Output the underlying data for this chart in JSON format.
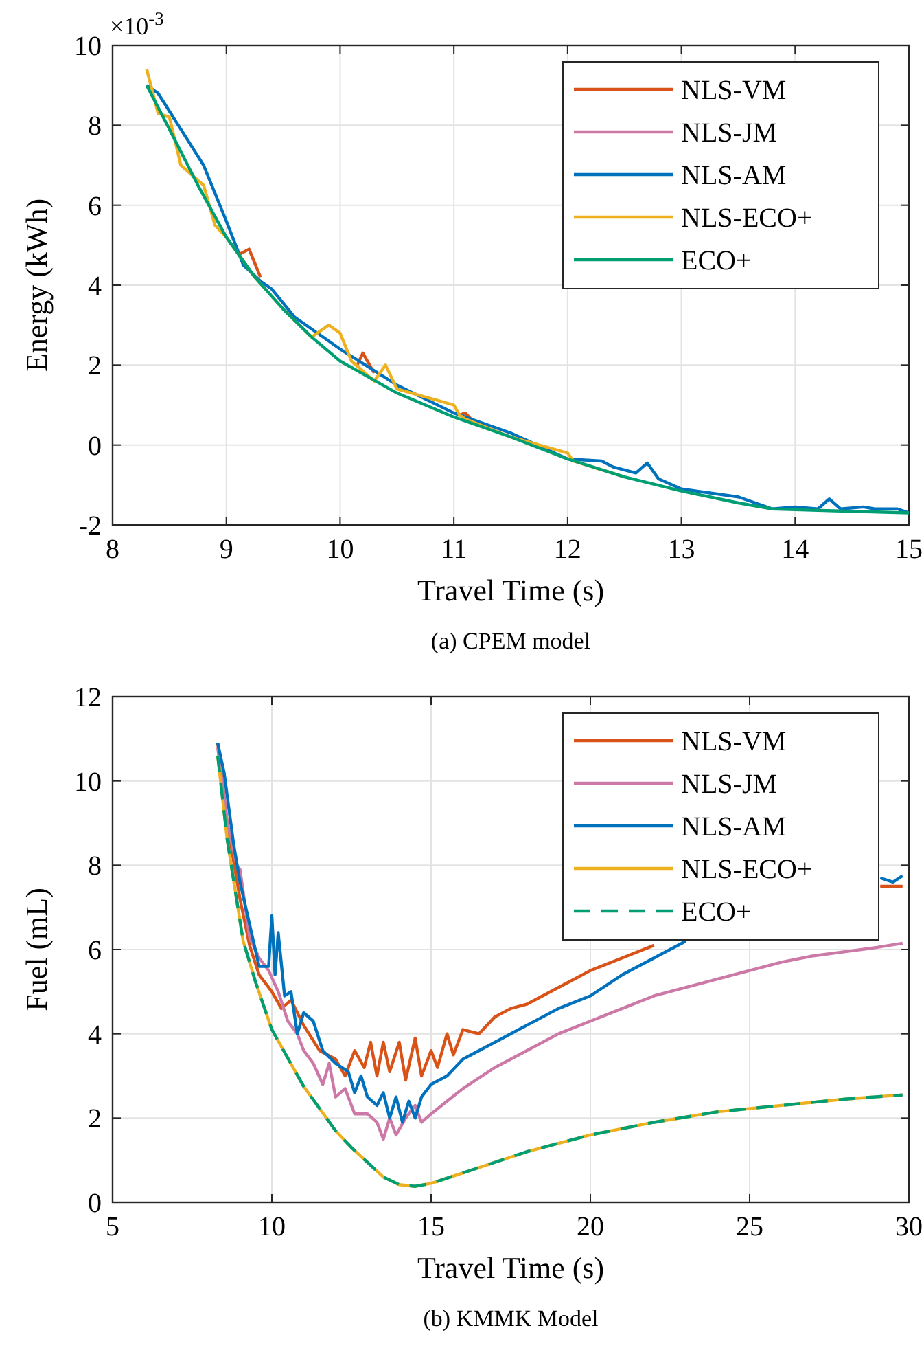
{
  "chart_data": [
    {
      "type": "line",
      "title": "(a) CPEM model",
      "xlabel": "Travel Time (s)",
      "ylabel": "Energy (kWh)",
      "annotations": [
        "×10$^{-3}$"
      ],
      "xlim": [
        8,
        15
      ],
      "xticks": [
        8,
        9,
        10,
        11,
        12,
        13,
        14,
        15
      ],
      "ylim": [
        -2,
        10
      ],
      "yticks": [
        -2,
        0,
        2,
        4,
        6,
        8,
        10
      ],
      "grid": true,
      "legend": "top right",
      "line_style": "solid",
      "series": [
        {
          "name": "NLS-VM",
          "color": "#d95319",
          "x": [
            9.1,
            9.2,
            9.3,
            9.35,
            10.15,
            10.2,
            10.3,
            10.35,
            11.05,
            11.1,
            11.2
          ],
          "values": [
            4.75,
            4.9,
            4.2,
            null,
            2.0,
            2.3,
            1.8,
            null,
            0.75,
            0.8,
            0.5
          ]
        },
        {
          "name": "NLS-JM",
          "color": "#cc79a7"
        },
        {
          "name": "NLS-AM",
          "color": "#0072bd",
          "x": [
            8.3,
            8.4,
            8.6,
            8.8,
            9.0,
            9.15,
            9.3,
            9.4,
            9.6,
            10,
            10.5,
            11,
            11.5,
            12,
            12.3,
            12.4,
            12.6,
            12.7,
            12.8,
            13,
            13.5,
            13.8,
            14,
            14.2,
            14.3,
            14.4,
            14.6,
            14.7,
            14.9,
            15
          ],
          "values": [
            9.0,
            8.8,
            7.9,
            7.0,
            5.6,
            4.5,
            4.1,
            3.9,
            3.2,
            2.4,
            1.5,
            0.8,
            0.3,
            -0.35,
            -0.4,
            -0.55,
            -0.7,
            -0.45,
            -0.85,
            -1.1,
            -1.3,
            -1.6,
            -1.55,
            -1.6,
            -1.35,
            -1.6,
            -1.55,
            -1.6,
            -1.6,
            -1.7
          ]
        },
        {
          "name": "NLS-ECO+",
          "color": "#edb120",
          "x": [
            8.3,
            8.4,
            8.5,
            8.6,
            8.8,
            8.9,
            9,
            9.25,
            9.5,
            9.75,
            9.9,
            10,
            10.1,
            10.3,
            10.4,
            10.5,
            11,
            11.05,
            11.1,
            11.5,
            12,
            12.05,
            12.5
          ],
          "values": [
            9.4,
            8.3,
            8.2,
            7.0,
            6.5,
            5.5,
            5.2,
            4.2,
            3.4,
            2.7,
            3.0,
            2.8,
            2.1,
            1.6,
            2.0,
            1.4,
            1.0,
            0.75,
            0.65,
            0.2,
            -0.2,
            -0.4,
            -0.8
          ]
        },
        {
          "name": "ECO+",
          "color": "#009e73",
          "x": [
            8.3,
            8.5,
            8.75,
            9,
            9.25,
            9.5,
            9.75,
            10,
            10.5,
            11,
            11.5,
            12,
            12.5,
            13,
            13.5,
            13.8,
            14,
            14.5,
            15
          ],
          "values": [
            9.0,
            7.9,
            6.5,
            5.2,
            4.2,
            3.4,
            2.7,
            2.1,
            1.3,
            0.7,
            0.2,
            -0.35,
            -0.8,
            -1.15,
            -1.45,
            -1.6,
            -1.62,
            -1.66,
            -1.7
          ]
        }
      ]
    },
    {
      "type": "line",
      "title": "(b) KMMK Model",
      "xlabel": "Travel Time (s)",
      "ylabel": "Fuel (mL)",
      "xlim": [
        5,
        30
      ],
      "xticks": [
        5,
        10,
        15,
        20,
        25,
        30
      ],
      "ylim": [
        0,
        12
      ],
      "yticks": [
        0,
        2,
        4,
        6,
        8,
        10,
        12
      ],
      "grid": true,
      "legend": "top right",
      "series": [
        {
          "name": "NLS-VM",
          "color": "#d95319",
          "x": [
            8.3,
            8.6,
            9.0,
            9.3,
            9.6,
            10,
            10.3,
            10.6,
            11,
            11.5,
            12,
            12.3,
            12.6,
            12.9,
            13.1,
            13.3,
            13.5,
            13.7,
            14.0,
            14.2,
            14.5,
            14.7,
            15,
            15.2,
            15.5,
            15.7,
            16,
            16.5,
            17,
            17.5,
            18,
            18.5,
            19,
            19.5,
            20,
            21,
            22,
            23,
            23.5,
            29.1,
            29.8
          ],
          "values": [
            10.9,
            9.0,
            7.2,
            6.1,
            5.4,
            5.0,
            4.6,
            4.8,
            4.2,
            3.6,
            3.4,
            3.0,
            3.6,
            3.2,
            3.8,
            3.0,
            3.8,
            3.1,
            3.8,
            2.9,
            3.9,
            3.0,
            3.6,
            3.2,
            4.0,
            3.5,
            4.1,
            4.0,
            4.4,
            4.6,
            4.7,
            4.9,
            5.1,
            5.3,
            5.5,
            5.8,
            6.1,
            null,
            null,
            7.5,
            7.5
          ]
        },
        {
          "name": "NLS-JM",
          "color": "#cc79a7",
          "x": [
            8.3,
            8.6,
            8.9,
            9.0,
            9.3,
            9.6,
            9.9,
            10.2,
            10.5,
            10.8,
            11,
            11.3,
            11.6,
            11.8,
            12,
            12.3,
            12.6,
            13,
            13.3,
            13.5,
            13.7,
            13.9,
            14.2,
            14.5,
            14.7,
            15,
            15.5,
            16,
            17,
            18,
            19,
            20,
            21,
            22,
            23,
            24,
            25,
            26,
            27,
            28,
            29,
            29.8
          ],
          "values": [
            10.8,
            9.0,
            8.0,
            7.9,
            6.3,
            5.8,
            5.5,
            5.0,
            4.3,
            4.0,
            3.6,
            3.3,
            2.8,
            3.3,
            2.5,
            2.7,
            2.1,
            2.1,
            1.9,
            1.5,
            2.0,
            1.6,
            2.0,
            2.3,
            1.9,
            2.1,
            2.4,
            2.7,
            3.2,
            3.6,
            4.0,
            4.3,
            4.6,
            4.9,
            5.1,
            5.3,
            5.5,
            5.7,
            5.85,
            5.95,
            6.05,
            6.15
          ]
        },
        {
          "name": "NLS-AM",
          "color": "#0072bd",
          "x": [
            8.3,
            8.5,
            8.8,
            9.0,
            9.3,
            9.6,
            9.9,
            10.0,
            10.1,
            10.2,
            10.4,
            10.6,
            10.8,
            11,
            11.3,
            11.6,
            12,
            12.4,
            12.6,
            12.8,
            13,
            13.3,
            13.5,
            13.7,
            13.9,
            14.1,
            14.3,
            14.5,
            14.7,
            15,
            15.5,
            16,
            16.5,
            17,
            18,
            19,
            20,
            21,
            22,
            23,
            23.5,
            29.1,
            29.5,
            29.8
          ],
          "values": [
            10.9,
            10.2,
            8.5,
            7.6,
            6.6,
            5.6,
            5.6,
            6.8,
            5.4,
            6.4,
            4.9,
            5.0,
            4.0,
            4.5,
            4.3,
            3.6,
            3.3,
            3.1,
            2.6,
            3.0,
            2.5,
            2.3,
            2.6,
            2.0,
            2.5,
            1.9,
            2.4,
            2.0,
            2.5,
            2.8,
            3.0,
            3.4,
            3.6,
            3.8,
            4.2,
            4.6,
            4.9,
            5.4,
            5.8,
            6.2,
            null,
            7.7,
            7.6,
            7.75
          ]
        },
        {
          "name": "NLS-ECO+",
          "color": "#edb120",
          "x": [
            8.3,
            8.6,
            9.1,
            9.5,
            10,
            11,
            12,
            12.5,
            13,
            13.5,
            14,
            14.5,
            15,
            16,
            17,
            18,
            19,
            20,
            22,
            24,
            26,
            28,
            29.8
          ],
          "values": [
            10.6,
            8.6,
            6.2,
            5.2,
            4.1,
            2.75,
            1.7,
            1.3,
            0.95,
            0.6,
            0.42,
            0.38,
            0.45,
            0.7,
            0.95,
            1.2,
            1.4,
            1.6,
            1.9,
            2.15,
            2.3,
            2.45,
            2.55
          ]
        },
        {
          "name": "ECO+",
          "color": "#009e73",
          "line_style": "dashed",
          "x": [
            8.3,
            8.6,
            9.1,
            9.5,
            10,
            11,
            12,
            12.5,
            13,
            13.5,
            14,
            14.5,
            15,
            16,
            17,
            18,
            19,
            20,
            22,
            24,
            26,
            28,
            29.8
          ],
          "values": [
            10.6,
            8.6,
            6.2,
            5.2,
            4.1,
            2.75,
            1.7,
            1.3,
            0.95,
            0.6,
            0.42,
            0.38,
            0.45,
            0.7,
            0.95,
            1.2,
            1.4,
            1.6,
            1.9,
            2.15,
            2.3,
            2.45,
            2.55
          ]
        }
      ]
    }
  ]
}
